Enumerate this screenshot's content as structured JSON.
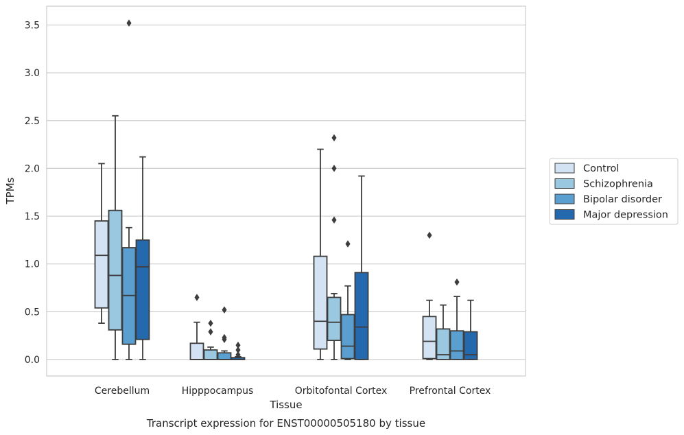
{
  "chart_data": {
    "type": "box",
    "title": "Transcript expression for ENST00000505180 by tissue",
    "xlabel": "Tissue",
    "ylabel": "TPMs",
    "ylim": [
      -0.17,
      3.7
    ],
    "yticks": [
      "0.0",
      "0.5",
      "1.0",
      "1.5",
      "2.0",
      "2.5",
      "3.0",
      "3.5"
    ],
    "grid": true,
    "legend_position": "right",
    "categories": [
      "Cerebellum",
      "Hipppocampus",
      "Orbitofontal Cortex",
      "Prefrontal Cortex"
    ],
    "series": [
      {
        "name": "Control",
        "color": "#d3e3f3",
        "boxes": [
          {
            "whislo": 0.38,
            "q1": 0.54,
            "med": 1.09,
            "q3": 1.45,
            "whishi": 2.05,
            "fliers": []
          },
          {
            "whislo": 0.0,
            "q1": 0.0,
            "med": 0.0,
            "q3": 0.17,
            "whishi": 0.39,
            "fliers": [
              0.65
            ]
          },
          {
            "whislo": 0.0,
            "q1": 0.11,
            "med": 0.4,
            "q3": 1.08,
            "whishi": 2.2,
            "fliers": []
          },
          {
            "whislo": 0.0,
            "q1": 0.01,
            "med": 0.19,
            "q3": 0.45,
            "whishi": 0.62,
            "fliers": [
              1.3
            ]
          }
        ]
      },
      {
        "name": "Schizophrenia",
        "color": "#9ac8e0",
        "boxes": [
          {
            "whislo": 0.0,
            "q1": 0.31,
            "med": 0.88,
            "q3": 1.56,
            "whishi": 2.55,
            "fliers": []
          },
          {
            "whislo": 0.0,
            "q1": 0.0,
            "med": 0.0,
            "q3": 0.1,
            "whishi": 0.13,
            "fliers": [
              0.29,
              0.38
            ]
          },
          {
            "whislo": 0.0,
            "q1": 0.2,
            "med": 0.39,
            "q3": 0.65,
            "whishi": 0.69,
            "fliers": [
              1.46,
              2.0,
              2.32
            ]
          },
          {
            "whislo": 0.0,
            "q1": 0.0,
            "med": 0.05,
            "q3": 0.32,
            "whishi": 0.57,
            "fliers": []
          }
        ]
      },
      {
        "name": "Bipolar disorder",
        "color": "#5a9fcf",
        "boxes": [
          {
            "whislo": 0.0,
            "q1": 0.16,
            "med": 0.67,
            "q3": 1.17,
            "whishi": 1.38,
            "fliers": [
              3.52
            ]
          },
          {
            "whislo": 0.0,
            "q1": 0.0,
            "med": 0.0,
            "q3": 0.07,
            "whishi": 0.09,
            "fliers": [
              0.21,
              0.23,
              0.52
            ]
          },
          {
            "whislo": 0.0,
            "q1": 0.01,
            "med": 0.14,
            "q3": 0.47,
            "whishi": 0.77,
            "fliers": [
              1.21
            ]
          },
          {
            "whislo": 0.0,
            "q1": 0.0,
            "med": 0.09,
            "q3": 0.3,
            "whishi": 0.66,
            "fliers": [
              0.81
            ]
          }
        ]
      },
      {
        "name": "Major depression",
        "color": "#2469ad",
        "boxes": [
          {
            "whislo": 0.0,
            "q1": 0.21,
            "med": 0.97,
            "q3": 1.25,
            "whishi": 2.12,
            "fliers": []
          },
          {
            "whislo": 0.0,
            "q1": 0.0,
            "med": 0.0,
            "q3": 0.02,
            "whishi": 0.03,
            "fliers": [
              0.05,
              0.1,
              0.15
            ]
          },
          {
            "whislo": 0.0,
            "q1": 0.0,
            "med": 0.34,
            "q3": 0.91,
            "whishi": 1.92,
            "fliers": []
          },
          {
            "whislo": 0.0,
            "q1": 0.0,
            "med": 0.05,
            "q3": 0.29,
            "whishi": 0.62,
            "fliers": []
          }
        ]
      }
    ]
  }
}
